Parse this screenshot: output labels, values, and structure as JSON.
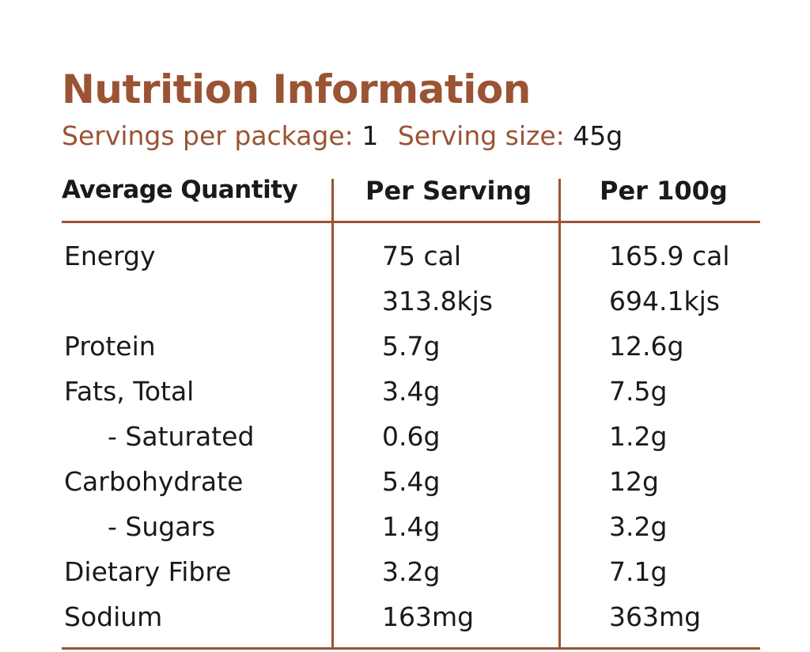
{
  "title": "Nutrition Information",
  "servings": {
    "per_package_label": "Servings per package:",
    "per_package_value": "1",
    "size_label": "Serving size:",
    "size_value": "45g"
  },
  "headers": {
    "quantity": "Average Quantity",
    "per_serving": "Per Serving",
    "per_100g": "Per 100g"
  },
  "rows": [
    {
      "name": "Energy",
      "per_serving": "75 cal",
      "per_100g": "165.9 cal"
    },
    {
      "name": "",
      "per_serving": "313.8kjs",
      "per_100g": "694.1kjs"
    },
    {
      "name": "Protein",
      "per_serving": "5.7g",
      "per_100g": "12.6g"
    },
    {
      "name": "Fats, Total",
      "per_serving": "3.4g",
      "per_100g": "7.5g"
    },
    {
      "name": "- Saturated",
      "per_serving": "0.6g",
      "per_100g": "1.2g"
    },
    {
      "name": "Carbohydrate",
      "per_serving": "5.4g",
      "per_100g": "12g"
    },
    {
      "name": "- Sugars",
      "per_serving": "1.4g",
      "per_100g": "3.2g"
    },
    {
      "name": "Dietary Fibre",
      "per_serving": "3.2g",
      "per_100g": "7.1g"
    },
    {
      "name": "Sodium",
      "per_serving": "163mg",
      "per_100g": "363mg"
    }
  ],
  "colors": {
    "accent": "#9a5433",
    "text": "#1a1a1a"
  }
}
